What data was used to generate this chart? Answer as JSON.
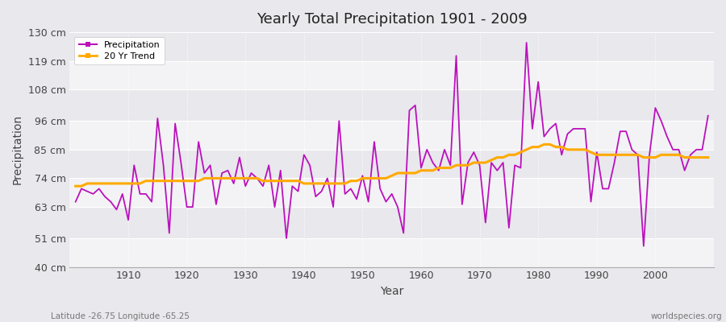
{
  "title": "Yearly Total Precipitation 1901 - 2009",
  "xlabel": "Year",
  "ylabel": "Precipitation",
  "subtitle_left": "Latitude -26.75 Longitude -65.25",
  "watermark": "worldspecies.org",
  "fig_bg_color": "#e8e8ed",
  "plot_bg_color": "#e8e8ed",
  "precip_color": "#bb11bb",
  "trend_color": "#ffaa00",
  "ylim": [
    40,
    130
  ],
  "yticks": [
    40,
    51,
    63,
    74,
    85,
    96,
    108,
    119,
    130
  ],
  "ytick_labels": [
    "40 cm",
    "51 cm",
    "63 cm",
    "74 cm",
    "85 cm",
    "96 cm",
    "108 cm",
    "119 cm",
    "130 cm"
  ],
  "years": [
    1901,
    1902,
    1903,
    1904,
    1905,
    1906,
    1907,
    1908,
    1909,
    1910,
    1911,
    1912,
    1913,
    1914,
    1915,
    1916,
    1917,
    1918,
    1919,
    1920,
    1921,
    1922,
    1923,
    1924,
    1925,
    1926,
    1927,
    1928,
    1929,
    1930,
    1931,
    1932,
    1933,
    1934,
    1935,
    1936,
    1937,
    1938,
    1939,
    1940,
    1941,
    1942,
    1943,
    1944,
    1945,
    1946,
    1947,
    1948,
    1949,
    1950,
    1951,
    1952,
    1953,
    1954,
    1955,
    1956,
    1957,
    1958,
    1959,
    1960,
    1961,
    1962,
    1963,
    1964,
    1965,
    1966,
    1967,
    1968,
    1969,
    1970,
    1971,
    1972,
    1973,
    1974,
    1975,
    1976,
    1977,
    1978,
    1979,
    1980,
    1981,
    1982,
    1983,
    1984,
    1985,
    1986,
    1987,
    1988,
    1989,
    1990,
    1991,
    1992,
    1993,
    1994,
    1995,
    1996,
    1997,
    1998,
    1999,
    2000,
    2001,
    2002,
    2003,
    2004,
    2005,
    2006,
    2007,
    2008,
    2009
  ],
  "precip": [
    65,
    70,
    69,
    68,
    70,
    67,
    65,
    62,
    68,
    58,
    79,
    68,
    68,
    65,
    97,
    79,
    53,
    95,
    80,
    63,
    63,
    88,
    76,
    79,
    64,
    76,
    77,
    72,
    82,
    71,
    76,
    74,
    71,
    79,
    63,
    77,
    51,
    71,
    69,
    83,
    79,
    67,
    69,
    74,
    63,
    96,
    68,
    70,
    66,
    75,
    65,
    88,
    70,
    65,
    68,
    63,
    53,
    100,
    102,
    78,
    85,
    80,
    77,
    85,
    79,
    121,
    64,
    80,
    84,
    79,
    57,
    80,
    77,
    80,
    55,
    79,
    78,
    126,
    93,
    111,
    90,
    93,
    95,
    83,
    91,
    93,
    93,
    93,
    65,
    84,
    70,
    70,
    80,
    92,
    92,
    85,
    83,
    48,
    83,
    101,
    96,
    90,
    85,
    85,
    77,
    83,
    85,
    85,
    98
  ],
  "trend": [
    71,
    71,
    72,
    72,
    72,
    72,
    72,
    72,
    72,
    72,
    72,
    72,
    73,
    73,
    73,
    73,
    73,
    73,
    73,
    73,
    73,
    73,
    74,
    74,
    74,
    74,
    74,
    74,
    74,
    74,
    74,
    74,
    73,
    73,
    73,
    73,
    73,
    73,
    73,
    72,
    72,
    72,
    72,
    72,
    72,
    72,
    72,
    73,
    73,
    74,
    74,
    74,
    74,
    74,
    75,
    76,
    76,
    76,
    76,
    77,
    77,
    77,
    78,
    78,
    78,
    79,
    79,
    79,
    80,
    80,
    80,
    81,
    82,
    82,
    83,
    83,
    84,
    85,
    86,
    86,
    87,
    87,
    86,
    86,
    85,
    85,
    85,
    85,
    84,
    83,
    83,
    83,
    83,
    83,
    83,
    83,
    83,
    82,
    82,
    82,
    83,
    83,
    83,
    83,
    82,
    82,
    82,
    82,
    82
  ]
}
